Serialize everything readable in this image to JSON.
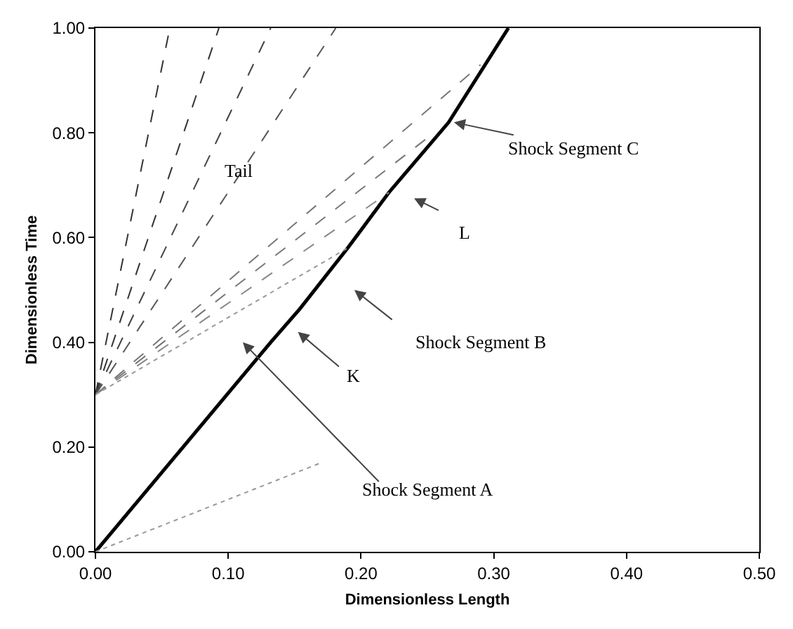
{
  "chart_data": {
    "type": "line",
    "xlabel": "Dimensionless Length",
    "ylabel": "Dimensionless Time",
    "xlim": [
      0,
      0.5
    ],
    "ylim": [
      0,
      1
    ],
    "xticks": [
      {
        "value": 0,
        "label": "0.00"
      },
      {
        "value": 0.1,
        "label": "0.10"
      },
      {
        "value": 0.2,
        "label": "0.20"
      },
      {
        "value": 0.3,
        "label": "0.30"
      },
      {
        "value": 0.4,
        "label": "0.40"
      },
      {
        "value": 0.5,
        "label": "0.50"
      }
    ],
    "yticks": [
      {
        "value": 0,
        "label": "0.00"
      },
      {
        "value": 0.2,
        "label": "0.20"
      },
      {
        "value": 0.4,
        "label": "0.40"
      },
      {
        "value": 0.6,
        "label": "0.60"
      },
      {
        "value": 0.8,
        "label": "0.80"
      },
      {
        "value": 1,
        "label": "1.00"
      }
    ],
    "marker": "none",
    "series": [
      {
        "color": "#000000",
        "line_style": "solid",
        "x": [
          0,
          0.066,
          0.132,
          0.154,
          0.19,
          0.221,
          0.266,
          0.311
        ],
        "values": [
          0,
          0.2,
          0.4,
          0.464,
          0.58,
          0.686,
          0.82,
          1.0
        ]
      },
      {
        "color": "#333333",
        "line_style": "dashed",
        "x": [
          0,
          0.056
        ],
        "values": [
          0.3,
          1.0
        ]
      },
      {
        "color": "#333333",
        "line_style": "dashed",
        "x": [
          0,
          0.093
        ],
        "values": [
          0.3,
          1.0
        ]
      },
      {
        "color": "#444444",
        "line_style": "dashed",
        "x": [
          0,
          0.132
        ],
        "values": [
          0.3,
          1.0
        ]
      },
      {
        "color": "#555555",
        "line_style": "dashed",
        "x": [
          0,
          0.181
        ],
        "values": [
          0.3,
          1.0
        ]
      },
      {
        "color": "#777777",
        "line_style": "dashed",
        "x": [
          0,
          0.29
        ],
        "values": [
          0.3,
          0.93
        ]
      },
      {
        "color": "#777777",
        "line_style": "dashed",
        "x": [
          0,
          0.255
        ],
        "values": [
          0.3,
          0.8
        ]
      },
      {
        "color": "#888888",
        "line_style": "dashed",
        "x": [
          0,
          0.221
        ],
        "values": [
          0.3,
          0.686
        ]
      },
      {
        "color": "#999999",
        "line_style": "dotted",
        "x": [
          0,
          0.19
        ],
        "values": [
          0.3,
          0.58
        ]
      },
      {
        "color": "#999999",
        "line_style": "dotted",
        "x": [
          0,
          0.169
        ],
        "values": [
          0,
          0.169
        ]
      }
    ],
    "annotations": [
      "Tail",
      {
        "text": "Shock Segment C",
        "x": 0.27,
        "y": 0.82
      },
      "L",
      "Shock Segment B",
      "K",
      "Shock Segment A"
    ]
  }
}
